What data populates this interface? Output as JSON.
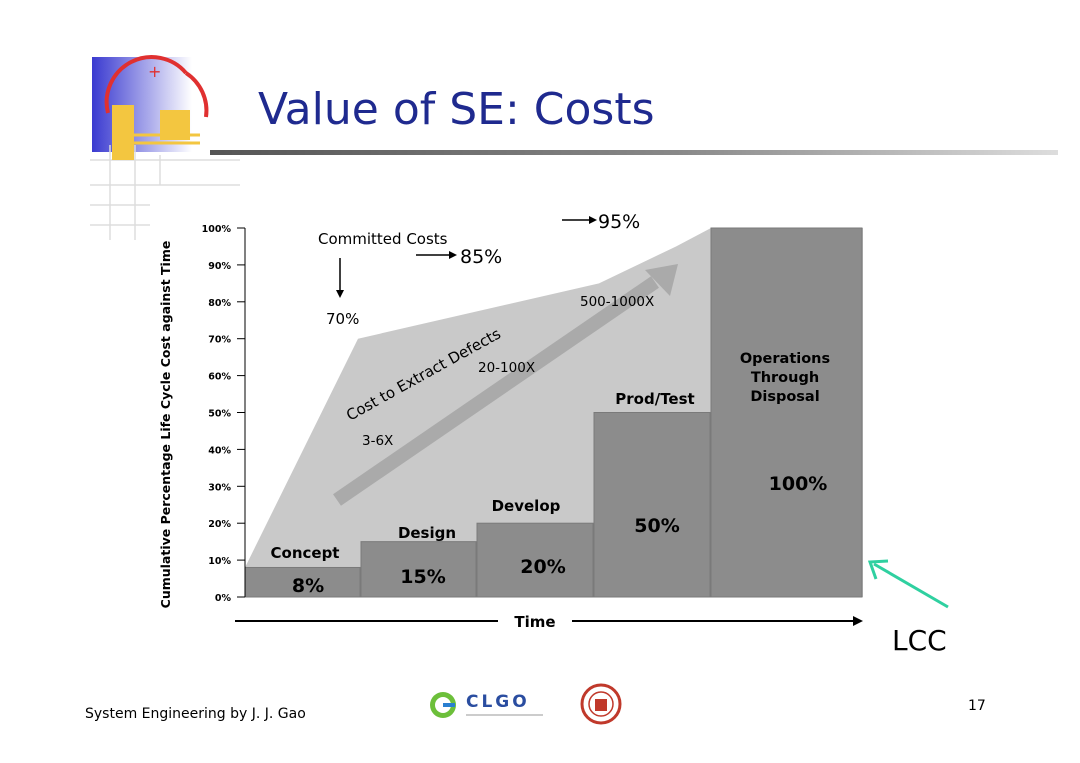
{
  "slide": {
    "title": "Value of SE: Costs",
    "footer_text": "System Engineering by J. J. Gao",
    "page_number": "17",
    "lcc_label": "LCC",
    "logo_text": "CLGO"
  },
  "colors": {
    "title": "#1f2a8f",
    "bar": "#8c8c8c",
    "committed_area": "#c9c9c9",
    "arrow_band": "#aaaaaa",
    "lcc_arrow": "#2fd0a0"
  },
  "chart_data": {
    "type": "bar",
    "ylabel": "Cumulative Percentage Life Cycle Cost against Time",
    "xlabel": "Time",
    "ylim": [
      0,
      100
    ],
    "yticks": [
      "0%",
      "10%",
      "20%",
      "30%",
      "40%",
      "50%",
      "60%",
      "70%",
      "80%",
      "90%",
      "100%"
    ],
    "categories": [
      "Concept",
      "Design",
      "Develop",
      "Prod/Test",
      "Operations Through Disposal"
    ],
    "values": [
      8,
      15,
      20,
      50,
      100
    ],
    "value_labels": [
      "8%",
      "15%",
      "20%",
      "50%",
      "100%"
    ],
    "committed_costs": {
      "label": "Committed Costs",
      "points": [
        {
          "phase_index": 0,
          "value": 70,
          "label": "70%"
        },
        {
          "phase_index": 2,
          "value": 85,
          "label": "85%"
        },
        {
          "phase_index": 3,
          "value": 95,
          "label": "95%"
        }
      ]
    },
    "defect_cost": {
      "label": "Cost to Extract Defects",
      "multipliers": [
        "3-6X",
        "20-100X",
        "500-1000X"
      ]
    }
  }
}
